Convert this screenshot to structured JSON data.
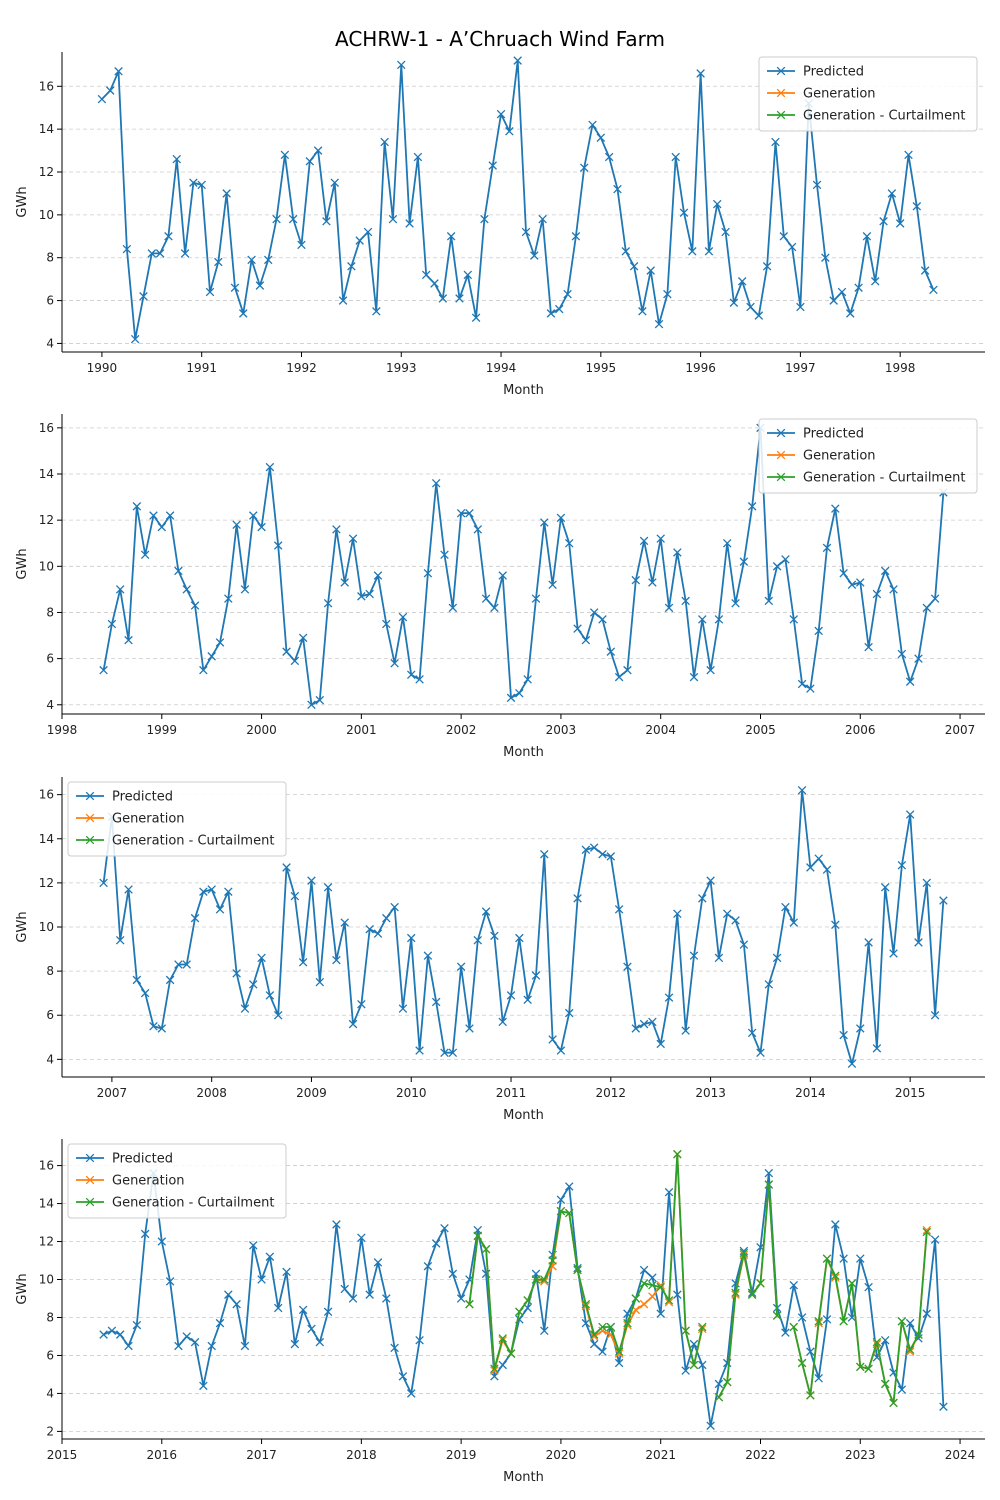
{
  "figure": {
    "title": "ACHRW-1 - A’Chruach Wind Farm"
  },
  "colors": {
    "predicted": "#1f77b4",
    "generation": "#ff7f0e",
    "curtailment": "#2ca02c"
  },
  "chart_data": [
    {
      "type": "line",
      "xlabel": "Month",
      "ylabel": "GWh",
      "xlim": [
        1989.6,
        1998.85
      ],
      "ylim": [
        3.6,
        17.6
      ],
      "xticks": [
        1990,
        1991,
        1992,
        1993,
        1994,
        1995,
        1996,
        1997,
        1998
      ],
      "yticks": [
        4,
        6,
        8,
        10,
        12,
        14,
        16
      ],
      "grid": "y-dashed",
      "legend": {
        "position": "top-right",
        "entries": [
          "Predicted",
          "Generation",
          "Generation - Curtailment"
        ]
      },
      "series": [
        {
          "name": "Predicted",
          "start": 1990.0,
          "values": [
            15.4,
            15.8,
            16.7,
            8.4,
            4.2,
            6.2,
            8.2,
            8.2,
            9.0,
            12.6,
            8.2,
            11.5,
            11.4,
            6.4,
            7.8,
            11.0,
            6.6,
            5.4,
            7.9,
            6.7,
            7.9,
            9.8,
            12.8,
            9.8,
            8.6,
            12.5,
            13.0,
            9.7,
            11.5,
            6.0,
            7.6,
            8.8,
            9.2,
            5.5,
            13.4,
            9.8,
            17.0,
            9.6,
            12.7,
            7.2,
            6.8,
            6.1,
            9.0,
            6.1,
            7.2,
            5.2,
            9.8,
            12.3,
            14.7,
            13.9,
            17.2,
            9.2,
            8.1,
            9.8,
            5.4,
            5.6,
            6.3,
            9.0,
            12.2,
            14.2,
            13.6,
            12.7,
            11.2,
            8.3,
            7.6,
            5.5,
            7.4,
            4.9,
            6.3,
            12.7,
            10.1,
            8.3,
            16.6,
            8.3,
            10.5,
            9.2,
            5.9,
            6.9,
            5.7,
            5.3,
            7.6,
            13.4,
            9.0,
            8.5,
            5.7,
            15.2,
            11.4,
            8.0,
            6.0,
            6.4,
            5.4,
            6.6,
            9.0,
            6.9,
            9.7,
            11.0,
            9.6,
            12.8,
            10.4,
            7.4,
            6.5
          ]
        },
        {
          "name": "Generation",
          "start": null,
          "values": []
        },
        {
          "name": "Generation - Curtailment",
          "start": null,
          "values": []
        }
      ]
    },
    {
      "type": "line",
      "xlabel": "Month",
      "ylabel": "GWh",
      "xlim": [
        1998.0,
        2007.25
      ],
      "ylim": [
        3.6,
        16.6
      ],
      "xticks": [
        1998,
        1999,
        2000,
        2001,
        2002,
        2003,
        2004,
        2005,
        2006,
        2007
      ],
      "yticks": [
        4,
        6,
        8,
        10,
        12,
        14,
        16
      ],
      "grid": "y-dashed",
      "legend": {
        "position": "top-right",
        "entries": [
          "Predicted",
          "Generation",
          "Generation - Curtailment"
        ]
      },
      "series": [
        {
          "name": "Predicted",
          "start": 1998.4167,
          "values": [
            5.5,
            7.5,
            9.0,
            6.8,
            12.6,
            10.5,
            12.2,
            11.7,
            12.2,
            9.8,
            9.0,
            8.3,
            5.5,
            6.1,
            6.7,
            8.6,
            11.8,
            9.0,
            12.2,
            11.7,
            14.3,
            10.9,
            6.3,
            5.9,
            6.9,
            4.0,
            4.2,
            8.4,
            11.6,
            9.3,
            11.2,
            8.7,
            8.8,
            9.6,
            7.5,
            5.8,
            7.8,
            5.3,
            5.1,
            9.7,
            13.6,
            10.5,
            8.2,
            12.3,
            12.3,
            11.6,
            8.6,
            8.2,
            9.6,
            4.3,
            4.5,
            5.1,
            8.6,
            11.9,
            9.2,
            12.1,
            11.0,
            7.3,
            6.8,
            8.0,
            7.7,
            6.3,
            5.2,
            5.5,
            9.4,
            11.1,
            9.3,
            11.2,
            8.2,
            10.6,
            8.5,
            5.2,
            7.7,
            5.5,
            7.7,
            11.0,
            8.4,
            10.2,
            12.6,
            16.0,
            8.5,
            10.0,
            10.3,
            7.7,
            4.9,
            4.7,
            7.2,
            10.8,
            12.5,
            9.7,
            9.2,
            9.3,
            6.5,
            8.8,
            9.8,
            9.0,
            6.2,
            5.0,
            6.0,
            8.2,
            8.6,
            13.2
          ]
        },
        {
          "name": "Generation",
          "start": null,
          "values": []
        },
        {
          "name": "Generation - Curtailment",
          "start": null,
          "values": []
        }
      ]
    },
    {
      "type": "line",
      "xlabel": "Month",
      "ylabel": "GWh",
      "xlim": [
        2006.5,
        2015.75
      ],
      "ylim": [
        3.2,
        16.8
      ],
      "xticks": [
        2007,
        2008,
        2009,
        2010,
        2011,
        2012,
        2013,
        2014,
        2015
      ],
      "yticks": [
        4,
        6,
        8,
        10,
        12,
        14,
        16
      ],
      "grid": "y-dashed",
      "legend": {
        "position": "top-left",
        "entries": [
          "Predicted",
          "Generation",
          "Generation - Curtailment"
        ]
      },
      "series": [
        {
          "name": "Predicted",
          "start": 2006.9167,
          "values": [
            12.0,
            15.0,
            9.4,
            11.7,
            7.6,
            7.0,
            5.5,
            5.4,
            7.6,
            8.3,
            8.3,
            10.4,
            11.6,
            11.7,
            10.8,
            11.6,
            7.9,
            6.3,
            7.4,
            8.6,
            6.9,
            6.0,
            12.7,
            11.4,
            8.4,
            12.1,
            7.5,
            11.8,
            8.5,
            10.2,
            5.6,
            6.5,
            9.9,
            9.7,
            10.4,
            10.9,
            6.3,
            9.5,
            4.4,
            8.7,
            6.6,
            4.3,
            4.3,
            8.2,
            5.4,
            9.4,
            10.7,
            9.6,
            5.7,
            6.9,
            9.5,
            6.7,
            7.8,
            13.3,
            4.9,
            4.4,
            6.1,
            11.3,
            13.5,
            13.6,
            13.3,
            13.2,
            10.8,
            8.2,
            5.4,
            5.6,
            5.7,
            4.7,
            6.8,
            10.6,
            5.3,
            8.7,
            11.3,
            12.1,
            8.6,
            10.6,
            10.3,
            9.2,
            5.2,
            4.3,
            7.4,
            8.6,
            10.9,
            10.2,
            16.2,
            12.7,
            13.1,
            12.6,
            10.1,
            5.1,
            3.8,
            5.4,
            9.3,
            4.5,
            11.8,
            8.8,
            12.8,
            15.1,
            9.3,
            12.0,
            6.0,
            11.2
          ]
        },
        {
          "name": "Generation",
          "start": null,
          "values": []
        },
        {
          "name": "Generation - Curtailment",
          "start": null,
          "values": []
        }
      ]
    },
    {
      "type": "line",
      "xlabel": "Month",
      "ylabel": "GWh",
      "xlim": [
        2015.0,
        2024.25
      ],
      "ylim": [
        1.6,
        17.4
      ],
      "xticks": [
        2015,
        2016,
        2017,
        2018,
        2019,
        2020,
        2021,
        2022,
        2023,
        2024
      ],
      "yticks": [
        2,
        4,
        6,
        8,
        10,
        12,
        14,
        16
      ],
      "grid": "y-dashed",
      "legend": {
        "position": "top-left",
        "entries": [
          "Predicted",
          "Generation",
          "Generation - Curtailment"
        ]
      },
      "series": [
        {
          "name": "Predicted",
          "start": 2015.4167,
          "values": [
            7.1,
            7.3,
            7.1,
            6.5,
            7.6,
            12.4,
            15.6,
            12.0,
            9.9,
            6.5,
            7.0,
            6.7,
            4.4,
            6.5,
            7.7,
            9.2,
            8.7,
            6.5,
            11.8,
            10.0,
            11.2,
            8.5,
            10.4,
            6.6,
            8.4,
            7.4,
            6.7,
            8.3,
            12.9,
            9.5,
            9.0,
            12.2,
            9.2,
            10.9,
            9.0,
            6.4,
            4.9,
            4.0,
            6.8,
            10.7,
            11.9,
            12.7,
            10.3,
            9.0,
            10.0,
            12.6,
            10.3,
            4.9,
            5.5,
            6.1,
            7.9,
            8.5,
            10.3,
            7.3,
            11.3,
            14.2,
            14.9,
            10.6,
            7.7,
            6.6,
            6.2,
            7.5,
            5.6,
            8.2,
            9.0,
            10.5,
            10.1,
            8.2,
            14.6,
            9.2,
            5.2,
            6.6,
            5.5,
            2.3,
            4.5,
            5.6,
            9.8,
            11.5,
            9.3,
            11.7,
            15.6,
            8.5,
            7.2,
            9.7,
            8.0,
            6.2,
            4.8,
            7.9,
            12.9,
            11.1,
            8.0,
            11.1,
            9.6,
            5.9,
            6.8,
            5.1,
            4.2,
            7.7,
            6.9,
            8.2,
            12.1,
            3.3
          ]
        },
        {
          "name": "Generation",
          "start": 2019.0833,
          "values": [
            8.7,
            12.3,
            11.6,
            5.2,
            6.8,
            6.1,
            8.3,
            8.9,
            10.0,
            9.9,
            10.7,
            13.6,
            13.5,
            10.5,
            8.6,
            7.0,
            7.3,
            7.1,
            6.1,
            7.6,
            8.4,
            8.7,
            9.1,
            9.7,
            8.8,
            16.6,
            7.3,
            5.5,
            7.4,
            null,
            3.8,
            4.6,
            9.2,
            11.3,
            9.2,
            9.8,
            15.0,
            8.1,
            null,
            7.5,
            5.6,
            3.9,
            7.7,
            11.1,
            10.1,
            7.8,
            9.8,
            5.4,
            5.3,
            6.6,
            4.5,
            3.5,
            7.8,
            6.2,
            7.1,
            12.6
          ]
        },
        {
          "name": "Generation - Curtailment",
          "start": 2019.0833,
          "values": [
            8.7,
            12.3,
            11.6,
            5.3,
            6.9,
            6.1,
            8.3,
            8.9,
            10.0,
            10.0,
            11.0,
            13.6,
            13.5,
            10.5,
            8.7,
            7.1,
            7.5,
            7.5,
            6.2,
            7.7,
            9.0,
            9.8,
            9.7,
            9.6,
            8.9,
            16.6,
            7.3,
            5.5,
            7.5,
            null,
            3.8,
            4.6,
            9.3,
            11.4,
            9.2,
            9.8,
            15.0,
            8.1,
            null,
            7.5,
            5.6,
            3.9,
            7.8,
            11.1,
            10.2,
            7.8,
            9.8,
            5.4,
            5.3,
            6.7,
            4.5,
            3.5,
            7.8,
            6.3,
            7.1,
            12.5
          ]
        }
      ]
    }
  ]
}
